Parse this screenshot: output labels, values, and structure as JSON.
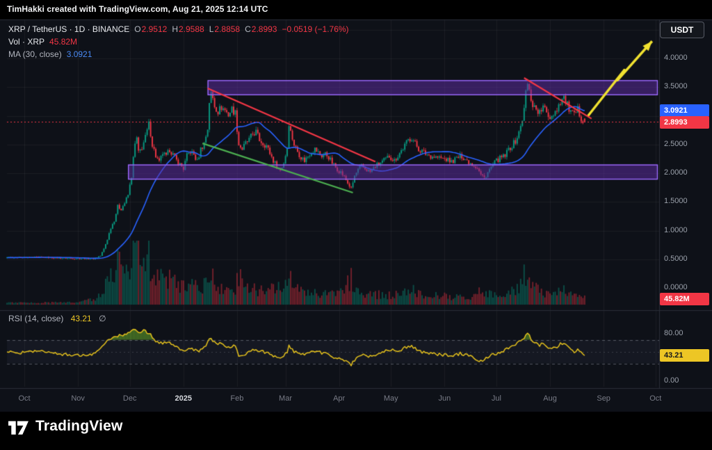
{
  "header": {
    "title": "TimHakki created with TradingView.com, Aug 21, 2025 12:14 UTC"
  },
  "toolbar": {
    "currency_button": "USDT"
  },
  "legend": {
    "symbol_full": "XRP / TetherUS · 1D · BINANCE",
    "ohlc": [
      {
        "label": "O",
        "value": "2.9512"
      },
      {
        "label": "H",
        "value": "2.9588"
      },
      {
        "label": "L",
        "value": "2.8858"
      },
      {
        "label": "C",
        "value": "2.8993"
      }
    ],
    "change": "−0.0519 (−1.76%)",
    "volume_label": "Vol · XRP",
    "volume_value": "45.82M",
    "ma_label": "MA (30, close)",
    "ma_value": "3.0921"
  },
  "rsi_legend": {
    "label": "RSI (14, close)",
    "value": "43.21",
    "suffix": "∅"
  },
  "price_axis": {
    "ticks": [
      {
        "label": "4.0000",
        "value": 4.0
      },
      {
        "label": "3.5000",
        "value": 3.5
      },
      {
        "label": "2.5000",
        "value": 2.5
      },
      {
        "label": "2.0000",
        "value": 2.0
      },
      {
        "label": "1.5000",
        "value": 1.5
      },
      {
        "label": "1.0000",
        "value": 1.0
      },
      {
        "label": "0.5000",
        "value": 0.5
      },
      {
        "label": "0.0000",
        "value": 0.0
      }
    ]
  },
  "rsi_axis": {
    "ticks": [
      {
        "label": "80.00",
        "value": 80
      },
      {
        "label": "0.00",
        "value": 0
      }
    ]
  },
  "badges": {
    "ma": {
      "text": "3.0921",
      "value": 3.0921,
      "bg": "#2962ff",
      "fg": "#ffffff"
    },
    "last": {
      "text": "2.8993",
      "value": 2.8993,
      "bg": "#f23645",
      "fg": "#ffffff"
    },
    "volume": {
      "text": "45.82M",
      "bg": "#f23645",
      "fg": "#ffffff"
    },
    "rsi": {
      "text": "43.21",
      "value": 43.21,
      "bg": "#edc625",
      "fg": "#15171c"
    }
  },
  "time_axis": {
    "labels": [
      {
        "label": "Oct",
        "day": 0
      },
      {
        "label": "Nov",
        "day": 31
      },
      {
        "label": "Dec",
        "day": 61
      },
      {
        "label": "2025",
        "day": 92,
        "em": true
      },
      {
        "label": "Feb",
        "day": 123
      },
      {
        "label": "Mar",
        "day": 151
      },
      {
        "label": "Apr",
        "day": 182
      },
      {
        "label": "May",
        "day": 212
      },
      {
        "label": "Jun",
        "day": 243
      },
      {
        "label": "Jul",
        "day": 273
      },
      {
        "label": "Aug",
        "day": 304
      },
      {
        "label": "Sep",
        "day": 335
      },
      {
        "label": "Oct",
        "day": 365
      }
    ]
  },
  "footer": {
    "brand": "TradingView"
  },
  "chart_data": {
    "type": "candlestick",
    "title": "XRP / TetherUS · 1D · BINANCE",
    "x_labels": [
      "Oct",
      "Nov",
      "Dec",
      "2025",
      "Feb",
      "Mar",
      "Apr",
      "May",
      "Jun",
      "Jul",
      "Aug",
      "Sep",
      "Oct"
    ],
    "ylim": [
      0,
      4.65
    ],
    "rsi_ylim": [
      0,
      100
    ],
    "last": {
      "open": 2.9512,
      "high": 2.9588,
      "low": 2.8858,
      "close": 2.8993,
      "change": -0.0519,
      "change_pct": -1.76
    },
    "ma_period": 30,
    "ma_last": 3.0921,
    "rsi_period": 14,
    "rsi_last": 43.21,
    "volume_last_label": "45.82M",
    "price_anchors": [
      [
        -45,
        0.53
      ],
      [
        -10,
        0.53
      ],
      [
        0,
        0.53
      ],
      [
        10,
        0.535
      ],
      [
        20,
        0.52
      ],
      [
        30,
        0.515
      ],
      [
        40,
        0.51
      ],
      [
        44,
        0.56
      ],
      [
        46,
        0.68
      ],
      [
        48,
        0.85
      ],
      [
        50,
        1.05
      ],
      [
        52,
        1.18
      ],
      [
        54,
        1.42
      ],
      [
        56,
        1.38
      ],
      [
        58,
        1.48
      ],
      [
        60,
        1.62
      ],
      [
        62,
        1.95
      ],
      [
        63,
        2.25
      ],
      [
        64,
        2.5
      ],
      [
        65,
        2.6
      ],
      [
        66,
        2.35
      ],
      [
        68,
        2.45
      ],
      [
        70,
        2.62
      ],
      [
        72,
        2.85
      ],
      [
        73,
        2.7
      ],
      [
        74,
        2.5
      ],
      [
        76,
        2.3
      ],
      [
        78,
        2.18
      ],
      [
        80,
        2.35
      ],
      [
        82,
        2.28
      ],
      [
        84,
        2.42
      ],
      [
        86,
        2.32
      ],
      [
        88,
        2.22
      ],
      [
        90,
        2.15
      ],
      [
        92,
        2.08
      ],
      [
        94,
        2.3
      ],
      [
        96,
        2.38
      ],
      [
        98,
        2.32
      ],
      [
        100,
        2.2
      ],
      [
        102,
        2.42
      ],
      [
        104,
        2.52
      ],
      [
        106,
        2.78
      ],
      [
        107,
        3.25
      ],
      [
        108,
        3.38
      ],
      [
        109,
        3.3
      ],
      [
        110,
        3.18
      ],
      [
        112,
        3.08
      ],
      [
        114,
        3.15
      ],
      [
        116,
        3.1
      ],
      [
        118,
        3.02
      ],
      [
        120,
        3.12
      ],
      [
        122,
        3.05
      ],
      [
        124,
        2.5
      ],
      [
        126,
        2.42
      ],
      [
        128,
        2.52
      ],
      [
        130,
        2.58
      ],
      [
        132,
        2.68
      ],
      [
        134,
        2.72
      ],
      [
        136,
        2.58
      ],
      [
        138,
        2.52
      ],
      [
        140,
        2.48
      ],
      [
        142,
        2.35
      ],
      [
        144,
        2.22
      ],
      [
        146,
        2.12
      ],
      [
        148,
        2.05
      ],
      [
        150,
        2.18
      ],
      [
        152,
        2.45
      ],
      [
        153,
        2.88
      ],
      [
        154,
        2.72
      ],
      [
        156,
        2.5
      ],
      [
        158,
        2.38
      ],
      [
        160,
        2.28
      ],
      [
        162,
        2.22
      ],
      [
        164,
        2.3
      ],
      [
        166,
        2.38
      ],
      [
        168,
        2.42
      ],
      [
        170,
        2.36
      ],
      [
        172,
        2.3
      ],
      [
        174,
        2.34
      ],
      [
        176,
        2.28
      ],
      [
        178,
        2.18
      ],
      [
        180,
        2.1
      ],
      [
        182,
        2.05
      ],
      [
        184,
        1.98
      ],
      [
        186,
        1.88
      ],
      [
        188,
        1.78
      ],
      [
        189,
        1.72
      ],
      [
        191,
        1.95
      ],
      [
        193,
        2.05
      ],
      [
        195,
        2.12
      ],
      [
        197,
        2.08
      ],
      [
        200,
        2.02
      ],
      [
        203,
        2.12
      ],
      [
        206,
        2.18
      ],
      [
        209,
        2.24
      ],
      [
        211,
        2.3
      ],
      [
        214,
        2.22
      ],
      [
        217,
        2.35
      ],
      [
        220,
        2.48
      ],
      [
        222,
        2.58
      ],
      [
        224,
        2.62
      ],
      [
        226,
        2.52
      ],
      [
        228,
        2.42
      ],
      [
        230,
        2.38
      ],
      [
        232,
        2.34
      ],
      [
        235,
        2.3
      ],
      [
        238,
        2.28
      ],
      [
        241,
        2.26
      ],
      [
        244,
        2.24
      ],
      [
        247,
        2.2
      ],
      [
        250,
        2.26
      ],
      [
        253,
        2.3
      ],
      [
        256,
        2.22
      ],
      [
        259,
        2.16
      ],
      [
        262,
        2.1
      ],
      [
        264,
        1.97
      ],
      [
        266,
        1.92
      ],
      [
        268,
        2.02
      ],
      [
        270,
        2.1
      ],
      [
        272,
        2.18
      ],
      [
        274,
        2.24
      ],
      [
        276,
        2.27
      ],
      [
        278,
        2.3
      ],
      [
        280,
        2.42
      ],
      [
        282,
        2.48
      ],
      [
        284,
        2.56
      ],
      [
        286,
        2.7
      ],
      [
        288,
        2.95
      ],
      [
        289,
        3.1
      ],
      [
        290,
        3.42
      ],
      [
        291,
        3.55
      ],
      [
        292,
        3.42
      ],
      [
        293,
        3.3
      ],
      [
        294,
        3.2
      ],
      [
        296,
        3.12
      ],
      [
        298,
        3.05
      ],
      [
        300,
        3.15
      ],
      [
        302,
        3.05
      ],
      [
        304,
        2.98
      ],
      [
        306,
        3.05
      ],
      [
        308,
        3.12
      ],
      [
        310,
        3.26
      ],
      [
        312,
        3.32
      ],
      [
        314,
        3.18
      ],
      [
        316,
        3.06
      ],
      [
        318,
        3.0
      ],
      [
        320,
        3.1
      ],
      [
        322,
        2.97
      ],
      [
        324,
        2.8993
      ]
    ],
    "volume_anchors": [
      [
        -45,
        60
      ],
      [
        0,
        60
      ],
      [
        30,
        70
      ],
      [
        42,
        220
      ],
      [
        46,
        600
      ],
      [
        50,
        1000
      ],
      [
        54,
        1300
      ],
      [
        58,
        1100
      ],
      [
        61,
        1400
      ],
      [
        63,
        2000
      ],
      [
        65,
        1750
      ],
      [
        68,
        1300
      ],
      [
        72,
        1500
      ],
      [
        76,
        1000
      ],
      [
        80,
        850
      ],
      [
        84,
        800
      ],
      [
        88,
        650
      ],
      [
        92,
        600
      ],
      [
        96,
        700
      ],
      [
        100,
        550
      ],
      [
        104,
        700
      ],
      [
        107,
        1200
      ],
      [
        110,
        800
      ],
      [
        114,
        550
      ],
      [
        118,
        480
      ],
      [
        122,
        450
      ],
      [
        124,
        1000
      ],
      [
        128,
        600
      ],
      [
        132,
        520
      ],
      [
        136,
        480
      ],
      [
        140,
        420
      ],
      [
        144,
        500
      ],
      [
        148,
        580
      ],
      [
        152,
        700
      ],
      [
        153,
        950
      ],
      [
        156,
        560
      ],
      [
        160,
        430
      ],
      [
        164,
        380
      ],
      [
        168,
        360
      ],
      [
        172,
        340
      ],
      [
        176,
        330
      ],
      [
        180,
        380
      ],
      [
        184,
        520
      ],
      [
        188,
        800
      ],
      [
        189,
        900
      ],
      [
        192,
        520
      ],
      [
        196,
        400
      ],
      [
        200,
        360
      ],
      [
        204,
        330
      ],
      [
        208,
        310
      ],
      [
        212,
        300
      ],
      [
        216,
        340
      ],
      [
        220,
        420
      ],
      [
        224,
        480
      ],
      [
        228,
        360
      ],
      [
        232,
        320
      ],
      [
        236,
        300
      ],
      [
        240,
        280
      ],
      [
        244,
        270
      ],
      [
        248,
        260
      ],
      [
        252,
        280
      ],
      [
        256,
        270
      ],
      [
        260,
        300
      ],
      [
        264,
        450
      ],
      [
        268,
        340
      ],
      [
        272,
        290
      ],
      [
        276,
        310
      ],
      [
        280,
        380
      ],
      [
        284,
        480
      ],
      [
        287,
        650
      ],
      [
        290,
        1050
      ],
      [
        292,
        850
      ],
      [
        294,
        600
      ],
      [
        297,
        480
      ],
      [
        300,
        420
      ],
      [
        303,
        380
      ],
      [
        306,
        400
      ],
      [
        309,
        440
      ],
      [
        312,
        480
      ],
      [
        315,
        380
      ],
      [
        318,
        330
      ],
      [
        321,
        290
      ],
      [
        324,
        230
      ]
    ],
    "rsi_anchors": [
      [
        -45,
        50
      ],
      [
        -10,
        49
      ],
      [
        0,
        48
      ],
      [
        10,
        52
      ],
      [
        20,
        46
      ],
      [
        30,
        44
      ],
      [
        40,
        46
      ],
      [
        44,
        58
      ],
      [
        48,
        68
      ],
      [
        52,
        76
      ],
      [
        56,
        78
      ],
      [
        60,
        80
      ],
      [
        63,
        88
      ],
      [
        66,
        84
      ],
      [
        70,
        85
      ],
      [
        73,
        78
      ],
      [
        76,
        66
      ],
      [
        80,
        64
      ],
      [
        84,
        66
      ],
      [
        88,
        58
      ],
      [
        92,
        52
      ],
      [
        96,
        57
      ],
      [
        100,
        50
      ],
      [
        104,
        57
      ],
      [
        107,
        70
      ],
      [
        108,
        72
      ],
      [
        110,
        66
      ],
      [
        114,
        62
      ],
      [
        118,
        58
      ],
      [
        122,
        60
      ],
      [
        124,
        42
      ],
      [
        128,
        46
      ],
      [
        132,
        54
      ],
      [
        136,
        52
      ],
      [
        140,
        48
      ],
      [
        144,
        42
      ],
      [
        148,
        38
      ],
      [
        152,
        50
      ],
      [
        153,
        60
      ],
      [
        156,
        50
      ],
      [
        160,
        44
      ],
      [
        164,
        47
      ],
      [
        168,
        50
      ],
      [
        172,
        48
      ],
      [
        176,
        44
      ],
      [
        180,
        40
      ],
      [
        184,
        36
      ],
      [
        188,
        30
      ],
      [
        189,
        28
      ],
      [
        192,
        40
      ],
      [
        196,
        44
      ],
      [
        200,
        42
      ],
      [
        204,
        46
      ],
      [
        208,
        50
      ],
      [
        212,
        53
      ],
      [
        216,
        50
      ],
      [
        220,
        57
      ],
      [
        224,
        60
      ],
      [
        228,
        50
      ],
      [
        232,
        48
      ],
      [
        236,
        46
      ],
      [
        240,
        45
      ],
      [
        244,
        44
      ],
      [
        248,
        42
      ],
      [
        252,
        47
      ],
      [
        256,
        44
      ],
      [
        260,
        40
      ],
      [
        264,
        33
      ],
      [
        268,
        40
      ],
      [
        272,
        46
      ],
      [
        276,
        50
      ],
      [
        280,
        56
      ],
      [
        284,
        62
      ],
      [
        287,
        68
      ],
      [
        289,
        74
      ],
      [
        290,
        79
      ],
      [
        291,
        81
      ],
      [
        293,
        72
      ],
      [
        295,
        66
      ],
      [
        298,
        60
      ],
      [
        300,
        64
      ],
      [
        302,
        58
      ],
      [
        304,
        54
      ],
      [
        306,
        56
      ],
      [
        308,
        58
      ],
      [
        310,
        63
      ],
      [
        312,
        65
      ],
      [
        314,
        58
      ],
      [
        316,
        52
      ],
      [
        318,
        50
      ],
      [
        320,
        54
      ],
      [
        322,
        48
      ],
      [
        324,
        43.21
      ]
    ],
    "zones": [
      {
        "from_day": 106,
        "to_day": 370,
        "price_from": 3.36,
        "price_to": 3.62
      },
      {
        "from_day": 60,
        "to_day": 370,
        "price_from": 1.89,
        "price_to": 2.15
      }
    ],
    "trendlines": [
      {
        "from": [
          106,
          3.48
        ],
        "to": [
          203,
          2.2
        ],
        "color": "#f23645"
      },
      {
        "from": [
          103,
          2.52
        ],
        "to": [
          190,
          1.66
        ],
        "color": "#4caf50"
      },
      {
        "from": [
          289,
          3.66
        ],
        "to": [
          328,
          2.95
        ],
        "color": "#f23645"
      }
    ],
    "arrow": {
      "points": [
        [
          326,
          3.0
        ],
        [
          347,
          3.8
        ],
        [
          343,
          3.62
        ],
        [
          363,
          4.3
        ]
      ]
    },
    "rsi_bands": [
      70,
      50,
      30
    ],
    "colors": {
      "bg": "#0e1118",
      "grid": "rgba(255,255,255,0.05)",
      "border": "#2a2e39",
      "up": "#089981",
      "down": "#f23645",
      "vol_up": "rgba(8,153,129,0.45)",
      "vol_down": "rgba(242,54,69,0.45)",
      "ma": "#2962ff",
      "rsi_line": "#e5c11d",
      "rsi_fill": "rgba(96,158,43,0.6)",
      "rsi_band_fill": "rgba(140,130,200,0.06)",
      "rsi_dash": "rgba(150,155,165,0.5)",
      "zone_fill": "rgba(95,45,168,0.5)",
      "zone_border": "#9d6bff",
      "arrow": "#f0e130"
    }
  }
}
